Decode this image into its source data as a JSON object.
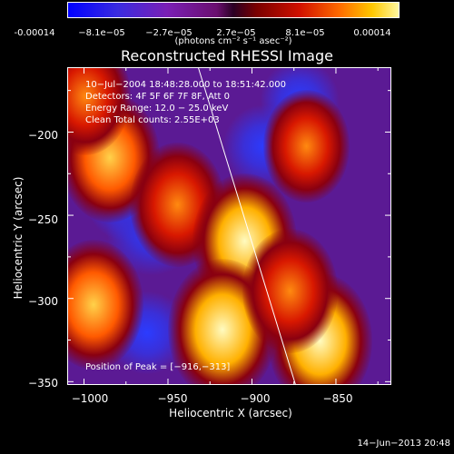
{
  "colorbar": {
    "ticks": [
      "-0.00014",
      "−8.1e−05",
      "−2.7e−05",
      "2.7e−05",
      "8.1e−05",
      "0.00014"
    ],
    "units": "(photons cm⁻² s⁻¹ asec⁻²)"
  },
  "chart_data": {
    "type": "heatmap",
    "title": "Reconstructed RHESSI Image",
    "xlabel": "Heliocentric X (arcsec)",
    "ylabel": "Heliocentric Y (arcsec)",
    "xlim": [
      -1010,
      -817
    ],
    "ylim": [
      -352,
      -161
    ],
    "xticks": [
      "−1000",
      "−950",
      "−900",
      "−850"
    ],
    "yticks": [
      "−200",
      "−250",
      "−300",
      "−350"
    ],
    "colorbar_range": [
      -0.00014,
      0.00014
    ],
    "peak": [
      -916,
      -313
    ],
    "limb_line": [
      [
        -932,
        -161
      ],
      [
        -874,
        -352
      ]
    ],
    "annotations": {
      "time_range": "10−Jul−2004 18:48:28.000 to 18:51:42.000",
      "detectors": "Detectors: 4F 5F 6F 7F 8F, Att 0",
      "energy": "Energy Range: 12.0 − 25.0 keV",
      "clean": "Clean     Total counts: 2.55E+03",
      "peak_text": "Position of Peak = [−916,−313]"
    },
    "hot_spots": [
      {
        "x": -985,
        "y": -215,
        "level": 0.9
      },
      {
        "x": -945,
        "y": -243,
        "level": 0.85
      },
      {
        "x": -905,
        "y": -265,
        "level": 0.95
      },
      {
        "x": -918,
        "y": -318,
        "level": 1.0
      },
      {
        "x": -860,
        "y": -325,
        "level": 0.95
      },
      {
        "x": -995,
        "y": -303,
        "level": 0.9
      },
      {
        "x": -868,
        "y": -208,
        "level": 0.75
      },
      {
        "x": -1000,
        "y": -178,
        "level": 0.8
      },
      {
        "x": -878,
        "y": -295,
        "level": 0.85
      }
    ],
    "cold_spots": [
      {
        "x": -960,
        "y": -258,
        "level": -0.8
      },
      {
        "x": -975,
        "y": -240,
        "level": -0.7
      },
      {
        "x": -893,
        "y": -208,
        "level": -0.7
      },
      {
        "x": -872,
        "y": -180,
        "level": -0.65
      },
      {
        "x": -963,
        "y": -320,
        "level": -0.7
      },
      {
        "x": -893,
        "y": -298,
        "level": -0.55
      }
    ]
  },
  "datestamp": "14−Jun−2013 20:48"
}
